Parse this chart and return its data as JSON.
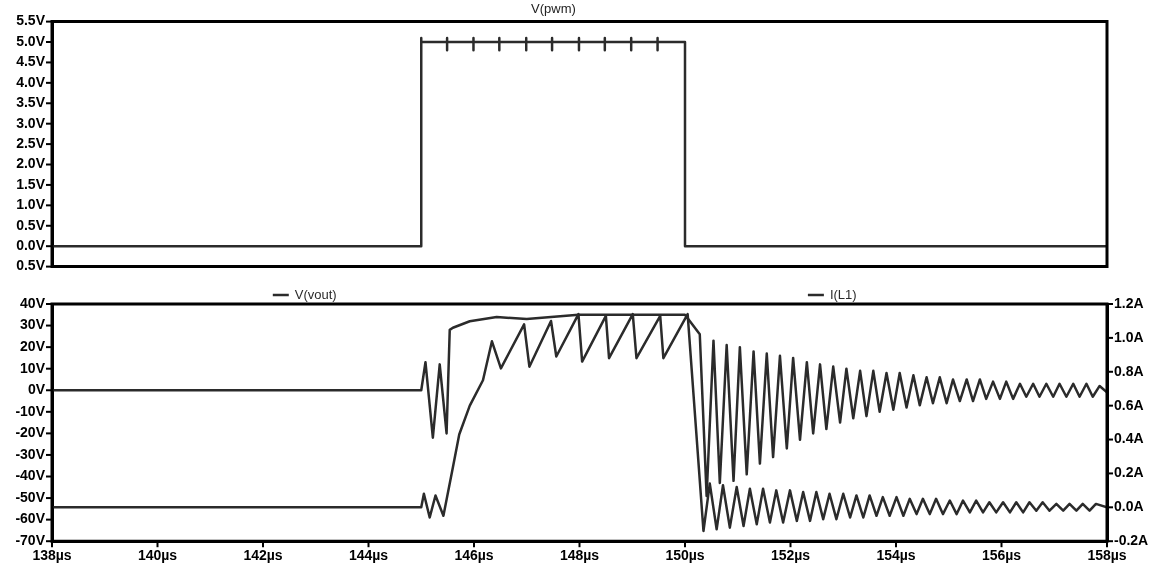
{
  "chart_data": [
    {
      "type": "line",
      "title": "V(pwm)",
      "xlim": [
        138,
        158
      ],
      "ylim": [
        -0.5,
        5.5
      ],
      "yticks": [
        {
          "value": -0.5,
          "label": "0.5V"
        },
        {
          "value": 0,
          "label": "0.0V"
        },
        {
          "value": 0.5,
          "label": "0.5V"
        },
        {
          "value": 1,
          "label": "1.0V"
        },
        {
          "value": 1.5,
          "label": "1.5V"
        },
        {
          "value": 2,
          "label": "2.0V"
        },
        {
          "value": 2.5,
          "label": "2.5V"
        },
        {
          "value": 3,
          "label": "3.0V"
        },
        {
          "value": 3.5,
          "label": "3.5V"
        },
        {
          "value": 4,
          "label": "4.0V"
        },
        {
          "value": 4.5,
          "label": "4.5V"
        },
        {
          "value": 5,
          "label": "5.0V"
        },
        {
          "value": 5.5,
          "label": "5.5V"
        }
      ],
      "tick_labels": "y",
      "grid": false,
      "legend": false,
      "marker": "none",
      "line_style": "solid",
      "series": [
        {
          "color": "#2b2b2b",
          "x": [
            138,
            145,
            145,
            145,
            145.49,
            145.49,
            145.49,
            145.49,
            145.99,
            145.99,
            145.99,
            145.99,
            146.48,
            146.48,
            146.48,
            146.48,
            146.99,
            146.99,
            146.99,
            146.99,
            147.48,
            147.48,
            147.48,
            147.48,
            147.99,
            147.99,
            147.99,
            147.99,
            148.48,
            148.48,
            148.48,
            148.48,
            148.98,
            148.98,
            148.98,
            148.98,
            149.48,
            149.48,
            149.48,
            149.48,
            150,
            150,
            158
          ],
          "values": [
            0,
            0,
            5.1,
            5,
            5,
            5.1,
            4.8,
            5,
            5,
            5.1,
            4.8,
            5,
            5,
            5.1,
            4.8,
            5,
            5,
            5.1,
            4.8,
            5,
            5,
            5.1,
            4.8,
            5,
            5,
            5.1,
            4.8,
            5,
            5,
            5.1,
            4.8,
            5,
            5,
            5.1,
            4.8,
            5,
            5,
            5.1,
            4.8,
            5,
            5,
            0,
            0
          ]
        }
      ]
    },
    {
      "type": "line",
      "xlim": [
        138,
        158
      ],
      "ylim": [
        -70,
        40
      ],
      "y2lim": [
        -0.2,
        1.2
      ],
      "xticks": [
        {
          "value": 138,
          "label": "138µs"
        },
        {
          "value": 140,
          "label": "140µs"
        },
        {
          "value": 142,
          "label": "142µs"
        },
        {
          "value": 144,
          "label": "144µs"
        },
        {
          "value": 146,
          "label": "146µs"
        },
        {
          "value": 148,
          "label": "148µs"
        },
        {
          "value": 150,
          "label": "150µs"
        },
        {
          "value": 152,
          "label": "152µs"
        },
        {
          "value": 154,
          "label": "154µs"
        },
        {
          "value": 156,
          "label": "156µs"
        },
        {
          "value": 158,
          "label": "158µs"
        }
      ],
      "yticks": [
        {
          "value": -70,
          "label": "-70V"
        },
        {
          "value": -60,
          "label": "-60V"
        },
        {
          "value": -50,
          "label": "-50V"
        },
        {
          "value": -40,
          "label": "-40V"
        },
        {
          "value": -30,
          "label": "-30V"
        },
        {
          "value": -20,
          "label": "-20V"
        },
        {
          "value": -10,
          "label": "-10V"
        },
        {
          "value": 0,
          "label": "0V"
        },
        {
          "value": 10,
          "label": "10V"
        },
        {
          "value": 20,
          "label": "20V"
        },
        {
          "value": 30,
          "label": "30V"
        },
        {
          "value": 40,
          "label": "40V"
        }
      ],
      "y2ticks": [
        {
          "value": -0.2,
          "label": "-0.2A"
        },
        {
          "value": 0,
          "label": "0.0A"
        },
        {
          "value": 0.2,
          "label": "0.2A"
        },
        {
          "value": 0.4,
          "label": "0.4A"
        },
        {
          "value": 0.6,
          "label": "0.6A"
        },
        {
          "value": 0.8,
          "label": "0.8A"
        },
        {
          "value": 1,
          "label": "1.0A"
        },
        {
          "value": 1.2,
          "label": "1.2A"
        }
      ],
      "grid": false,
      "legend": "top",
      "marker": "none",
      "line_style": "solid",
      "series": [
        {
          "name": "V(vout)",
          "color": "#2b2b2b",
          "x": [
            138,
            145,
            145.08,
            145.22,
            145.35,
            145.48,
            145.54,
            145.6,
            145.92,
            146.43,
            147.0,
            147.98,
            149.0,
            150.0,
            150.28,
            150.41,
            150.54,
            150.66,
            150.79,
            150.92,
            151.04,
            151.17,
            151.3,
            151.42,
            151.55,
            151.67,
            151.8,
            151.93,
            152.05,
            152.18,
            152.31,
            152.43,
            152.56,
            152.68,
            152.81,
            152.94,
            153.06,
            153.19,
            153.32,
            153.44,
            153.57,
            153.69,
            153.82,
            153.95,
            154.07,
            154.2,
            154.33,
            154.45,
            154.58,
            154.7,
            154.83,
            154.96,
            155.08,
            155.21,
            155.34,
            155.46,
            155.59,
            155.71,
            155.84,
            155.97,
            156.09,
            156.22,
            156.35,
            156.47,
            156.6,
            156.72,
            156.85,
            156.98,
            157.1,
            157.23,
            157.36,
            157.48,
            157.61,
            157.73,
            157.86,
            158
          ],
          "values": [
            0,
            0,
            13,
            -22,
            12,
            -20,
            28,
            29,
            32,
            34,
            33,
            35,
            35,
            35,
            26,
            -49,
            23,
            -43,
            21,
            -42,
            20,
            -39,
            18,
            -34,
            17,
            -31,
            16,
            -27,
            15,
            -23,
            13,
            -20,
            12,
            -18,
            11,
            -15,
            10,
            -13,
            9,
            -12,
            9,
            -10,
            8,
            -9,
            8,
            -8,
            7,
            -7,
            6,
            -6,
            6,
            -6,
            5,
            -5,
            5,
            -5,
            5,
            -4,
            4,
            -4,
            4,
            -4,
            3,
            -3,
            3,
            -3,
            3,
            -3,
            3,
            -3,
            3,
            -3,
            3,
            -3,
            2,
            -1
          ]
        },
        {
          "name": "I(L1)",
          "color": "#2b2b2b",
          "axis": "y2",
          "x": [
            138,
            145,
            145.05,
            145.16,
            145.27,
            145.42,
            145.59,
            145.72,
            145.92,
            146.17,
            146.34,
            146.51,
            146.95,
            147.05,
            147.46,
            147.56,
            147.98,
            148.05,
            148.5,
            148.56,
            149.01,
            149.08,
            149.53,
            149.59,
            150.05,
            150.35,
            150.47,
            150.6,
            150.72,
            150.85,
            150.98,
            151.11,
            151.23,
            151.36,
            151.48,
            151.61,
            151.73,
            151.86,
            151.99,
            152.12,
            152.24,
            152.37,
            152.49,
            152.62,
            152.74,
            152.87,
            153.0,
            153.13,
            153.25,
            153.38,
            153.5,
            153.63,
            153.75,
            153.88,
            154.01,
            154.14,
            154.26,
            154.39,
            154.51,
            154.64,
            154.76,
            154.89,
            155.02,
            155.15,
            155.27,
            155.4,
            155.52,
            155.65,
            155.77,
            155.9,
            156.03,
            156.16,
            156.28,
            156.41,
            156.53,
            156.66,
            156.78,
            156.91,
            157.04,
            157.17,
            157.29,
            157.42,
            157.54,
            157.67,
            157.79,
            158
          ],
          "values": [
            0,
            0,
            0.08,
            -0.06,
            0.07,
            -0.05,
            0.22,
            0.43,
            0.6,
            0.75,
            0.98,
            0.82,
            1.08,
            0.83,
            1.1,
            0.89,
            1.14,
            0.86,
            1.13,
            0.88,
            1.14,
            0.88,
            1.13,
            0.88,
            1.14,
            -0.14,
            0.14,
            -0.13,
            0.13,
            -0.12,
            0.12,
            -0.11,
            0.11,
            -0.1,
            0.11,
            -0.09,
            0.1,
            -0.09,
            0.1,
            -0.08,
            0.09,
            -0.08,
            0.09,
            -0.07,
            0.08,
            -0.07,
            0.08,
            -0.06,
            0.07,
            -0.06,
            0.07,
            -0.05,
            0.06,
            -0.05,
            0.06,
            -0.05,
            0.05,
            -0.04,
            0.05,
            -0.04,
            0.05,
            -0.04,
            0.04,
            -0.04,
            0.04,
            -0.03,
            0.04,
            -0.03,
            0.03,
            -0.03,
            0.03,
            -0.03,
            0.03,
            -0.03,
            0.03,
            -0.02,
            0.03,
            -0.02,
            0.02,
            -0.02,
            0.02,
            -0.02,
            0.02,
            -0.02,
            0.02,
            0
          ]
        }
      ]
    }
  ]
}
